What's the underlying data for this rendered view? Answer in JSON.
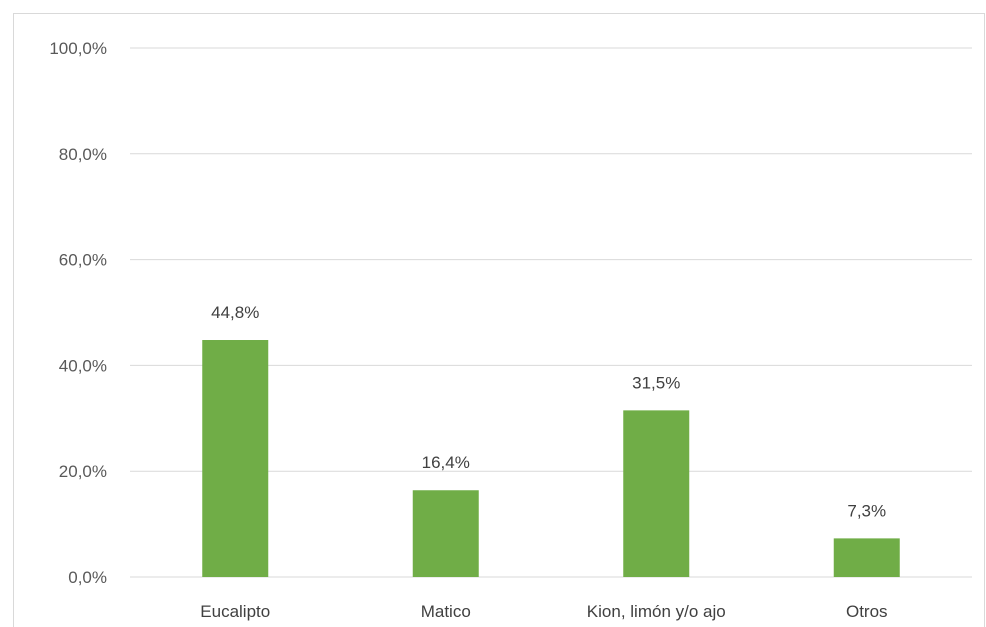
{
  "chart_data": {
    "type": "bar",
    "categories": [
      "Eucalipto",
      "Matico",
      "Kion, limón y/o ajo",
      "Otros"
    ],
    "values": [
      44.8,
      16.4,
      31.5,
      7.3
    ],
    "data_labels": [
      "44,8%",
      "16,4%",
      "31,5%",
      "7,3%"
    ],
    "y_ticks": [
      {
        "value": 0,
        "label": "0,0%"
      },
      {
        "value": 20,
        "label": "20,0%"
      },
      {
        "value": 40,
        "label": "40,0%"
      },
      {
        "value": 60,
        "label": "60,0%"
      },
      {
        "value": 80,
        "label": "80,0%"
      },
      {
        "value": 100,
        "label": "100,0%"
      }
    ],
    "ylim": [
      0,
      100
    ],
    "grid": true,
    "legend": "none",
    "bar_color": "#70ad47",
    "grid_color": "#d9d9d9"
  }
}
